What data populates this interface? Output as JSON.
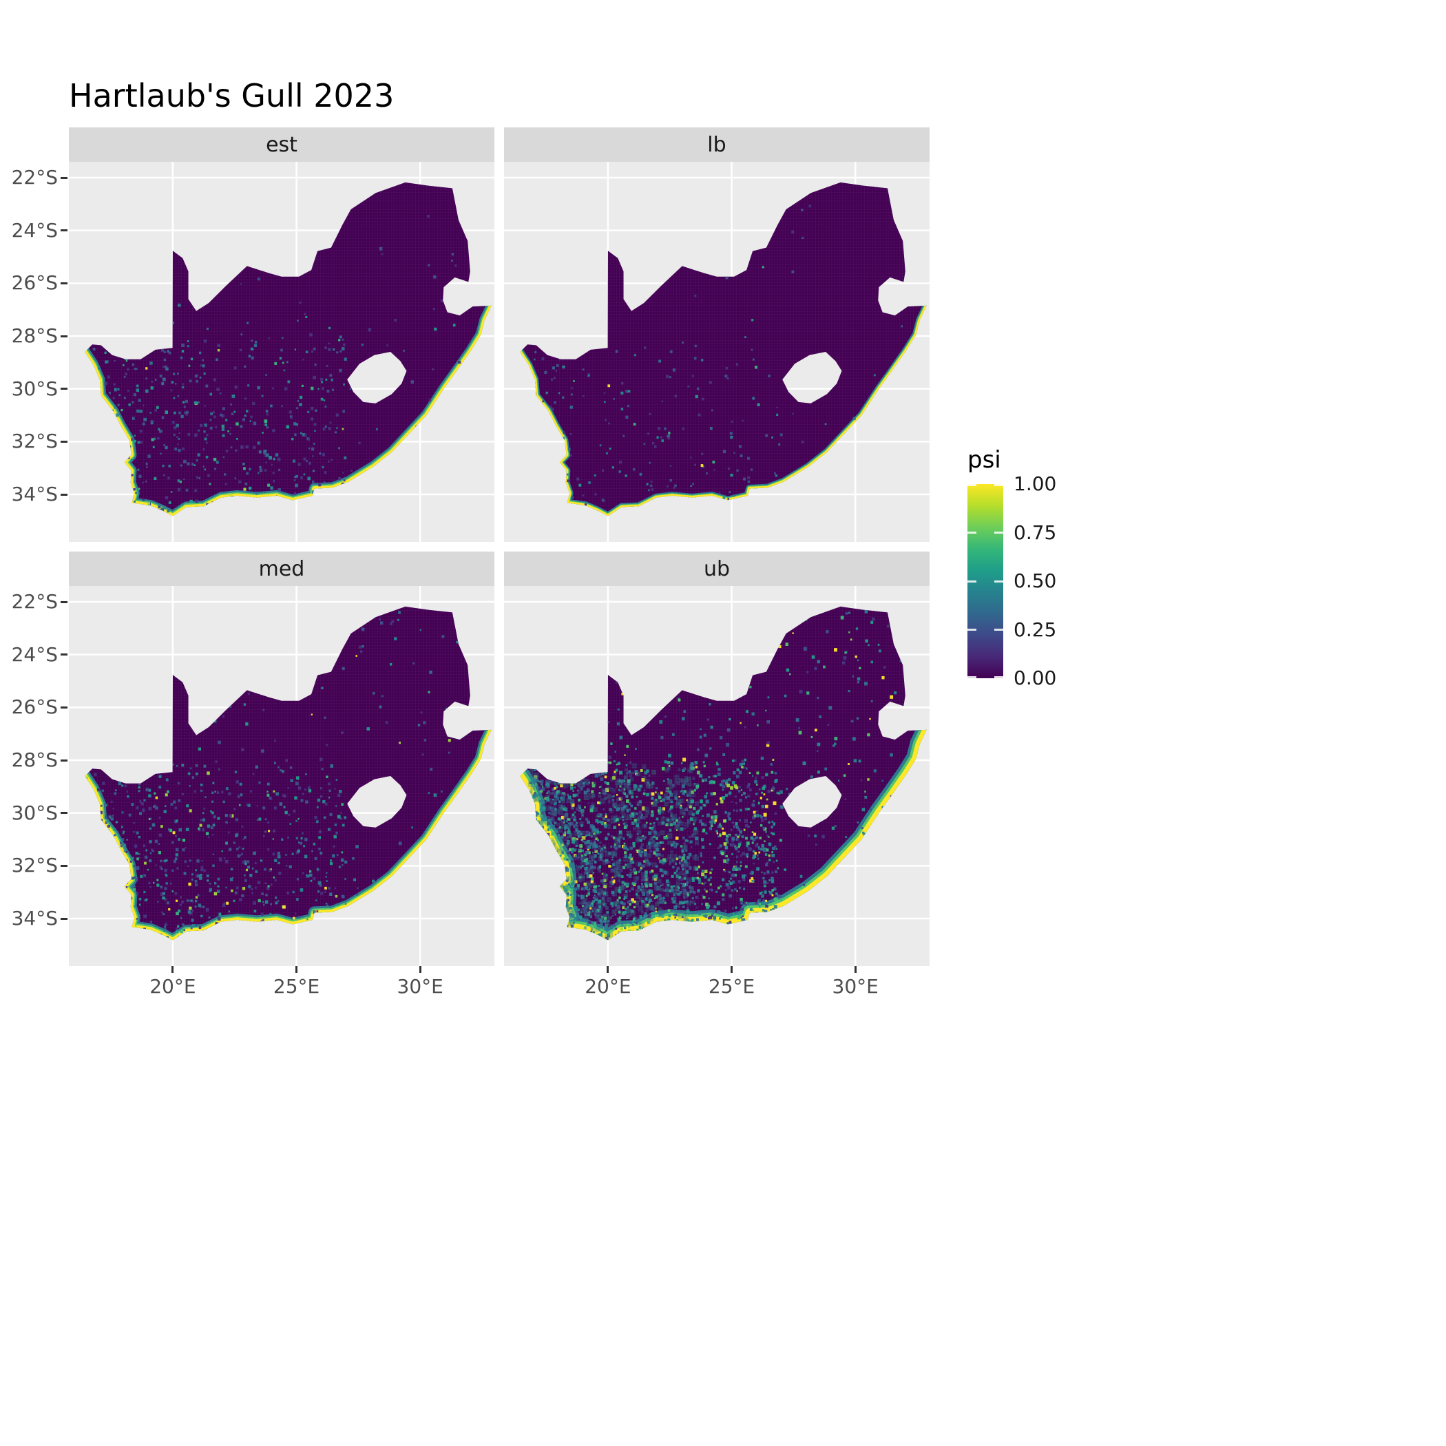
{
  "title": "Hartlaub's Gull 2023",
  "legend": {
    "title": "psi",
    "ticks": [
      {
        "label": "1.00",
        "value": 1.0
      },
      {
        "label": "0.75",
        "value": 0.75
      },
      {
        "label": "0.50",
        "value": 0.5
      },
      {
        "label": "0.25",
        "value": 0.25
      },
      {
        "label": "0.00",
        "value": 0.0
      }
    ],
    "viridis": [
      "#440154",
      "#482878",
      "#3e4989",
      "#31688e",
      "#26828e",
      "#1f9e89",
      "#35b779",
      "#6ece58",
      "#b5de2b",
      "#fde725"
    ]
  },
  "axes": {
    "y_ticks": [
      {
        "label": "22°S",
        "lat": 22
      },
      {
        "label": "24°S",
        "lat": 24
      },
      {
        "label": "26°S",
        "lat": 26
      },
      {
        "label": "28°S",
        "lat": 28
      },
      {
        "label": "30°S",
        "lat": 30
      },
      {
        "label": "32°S",
        "lat": 32
      },
      {
        "label": "34°S",
        "lat": 34
      }
    ],
    "x_ticks": [
      {
        "label": "20°E",
        "lon": 20
      },
      {
        "label": "25°E",
        "lon": 25
      },
      {
        "label": "30°E",
        "lon": 30
      }
    ]
  },
  "chart_data": {
    "type": "heatmap",
    "title": "Hartlaub's Gull 2023",
    "variable": "psi",
    "region": "South Africa",
    "scale": {
      "min": 0.0,
      "max": 1.0,
      "palette": "viridis",
      "legend_position": "right"
    },
    "extent": {
      "lon": [
        15.8,
        33.0
      ],
      "lat": [
        21.4,
        35.8
      ]
    },
    "panel_background": "#EBEBEB",
    "land_fill": "#440154",
    "gridline_color": "#FFFFFF",
    "facets": [
      {
        "label": "est",
        "summary": "Estimated occupancy: near 0 across the interior; high psi (green-yellow) fringe along the west and south coasts; sparse low-value speckling in the southwest.",
        "style": {
          "seed": 11,
          "speckles": 700,
          "sw_fraction": 0.75,
          "size": [
            0.06,
            0.13
          ],
          "colors": [
            [
              "#46327e",
              3
            ],
            [
              "#3b528b",
              2.5
            ],
            [
              "#2c728e",
              2
            ],
            [
              "#24868e",
              1.2
            ],
            [
              "#1f9e89",
              0.7
            ],
            [
              "#35b779",
              0.4
            ],
            [
              "#a0da39",
              0.15
            ],
            [
              "#fde725",
              0.15
            ]
          ],
          "coast_widths": [
            0.42,
            0.28,
            0.18
          ]
        }
      },
      {
        "label": "lb",
        "summary": "Lower bound: almost entirely 0; narrow high-psi strip only on the west and far south coasts.",
        "style": {
          "seed": 22,
          "speckles": 260,
          "sw_fraction": 0.8,
          "size": [
            0.06,
            0.12
          ],
          "colors": [
            [
              "#46327e",
              3
            ],
            [
              "#3b528b",
              2
            ],
            [
              "#2c728e",
              1.2
            ],
            [
              "#24868e",
              0.7
            ],
            [
              "#1f9e89",
              0.4
            ],
            [
              "#35b779",
              0.25
            ],
            [
              "#fde725",
              0.1
            ]
          ],
          "coast_widths": [
            0.3,
            0.2,
            0.14
          ]
        }
      },
      {
        "label": "med",
        "summary": "Median: near 0 inland with moderate speckling in the west and southwest; strong coastal fringe of high psi.",
        "style": {
          "seed": 33,
          "speckles": 950,
          "sw_fraction": 0.75,
          "size": [
            0.06,
            0.13
          ],
          "colors": [
            [
              "#46327e",
              3
            ],
            [
              "#3b528b",
              2.5
            ],
            [
              "#2c728e",
              2.2
            ],
            [
              "#24868e",
              1.5
            ],
            [
              "#1f9e89",
              0.9
            ],
            [
              "#35b779",
              0.6
            ],
            [
              "#a0da39",
              0.25
            ],
            [
              "#fde725",
              0.25
            ]
          ],
          "coast_widths": [
            0.48,
            0.32,
            0.2
          ]
        }
      },
      {
        "label": "ub",
        "summary": "Upper bound: wide high-psi coastal band and extensive teal/green speckling across the western interior; scattered bright cells elsewhere.",
        "style": {
          "seed": 44,
          "speckles": 2400,
          "sw_fraction": 0.78,
          "size": [
            0.06,
            0.14
          ],
          "colors": [
            [
              "#46327e",
              2
            ],
            [
              "#3b528b",
              2
            ],
            [
              "#2c728e",
              2.5
            ],
            [
              "#24868e",
              2.5
            ],
            [
              "#1f9e89",
              1.8
            ],
            [
              "#35b779",
              1.2
            ],
            [
              "#52c569",
              0.8
            ],
            [
              "#a0da39",
              0.6
            ],
            [
              "#fde725",
              0.7
            ]
          ],
          "coast_widths": [
            0.8,
            0.55,
            0.34
          ],
          "haze": {
            "seed": 55,
            "count": 900,
            "size": [
              0.1,
              0.22
            ],
            "opacity": 0.32,
            "colors": [
              [
                "#2c728e",
                2
              ],
              [
                "#24868e",
                2
              ],
              [
                "#26828e",
                1.5
              ],
              [
                "#1f9e89",
                1
              ]
            ]
          }
        }
      }
    ],
    "map": {
      "coast_colors": [
        "#2a788e",
        "#54c568",
        "#fde725"
      ],
      "coast_points": 37,
      "outer": [
        [
          16.45,
          28.6
        ],
        [
          16.8,
          29.1
        ],
        [
          17.05,
          29.65
        ],
        [
          17.1,
          30.25
        ],
        [
          17.6,
          30.85
        ],
        [
          17.9,
          31.4
        ],
        [
          18.25,
          31.95
        ],
        [
          18.33,
          32.5
        ],
        [
          18.05,
          32.78
        ],
        [
          18.33,
          33.1
        ],
        [
          18.3,
          33.55
        ],
        [
          18.45,
          33.95
        ],
        [
          18.35,
          34.32
        ],
        [
          19.1,
          34.42
        ],
        [
          19.6,
          34.62
        ],
        [
          20.0,
          34.82
        ],
        [
          20.55,
          34.48
        ],
        [
          21.25,
          34.45
        ],
        [
          21.95,
          34.12
        ],
        [
          22.6,
          34.05
        ],
        [
          23.4,
          34.12
        ],
        [
          24.2,
          34.05
        ],
        [
          24.85,
          34.22
        ],
        [
          25.65,
          34.05
        ],
        [
          25.72,
          33.78
        ],
        [
          26.45,
          33.75
        ],
        [
          27.1,
          33.52
        ],
        [
          28.1,
          32.95
        ],
        [
          28.85,
          32.4
        ],
        [
          29.55,
          31.7
        ],
        [
          30.25,
          31.0
        ],
        [
          30.95,
          30.0
        ],
        [
          31.45,
          29.35
        ],
        [
          32.05,
          28.55
        ],
        [
          32.45,
          27.95
        ],
        [
          32.6,
          27.4
        ],
        [
          32.88,
          26.85
        ],
        [
          32.12,
          26.88
        ],
        [
          31.6,
          27.22
        ],
        [
          31.1,
          27.1
        ],
        [
          30.92,
          26.65
        ],
        [
          30.95,
          26.15
        ],
        [
          31.4,
          25.78
        ],
        [
          31.95,
          25.95
        ],
        [
          32.02,
          25.55
        ],
        [
          31.92,
          24.4
        ],
        [
          31.55,
          23.6
        ],
        [
          31.3,
          22.4
        ],
        [
          30.3,
          22.3
        ],
        [
          29.4,
          22.18
        ],
        [
          28.2,
          22.58
        ],
        [
          27.2,
          23.2
        ],
        [
          26.85,
          23.8
        ],
        [
          26.4,
          24.65
        ],
        [
          25.85,
          24.78
        ],
        [
          25.6,
          25.5
        ],
        [
          25.1,
          25.75
        ],
        [
          24.4,
          25.75
        ],
        [
          23.9,
          25.62
        ],
        [
          23.0,
          25.35
        ],
        [
          22.15,
          26.1
        ],
        [
          21.45,
          26.75
        ],
        [
          20.95,
          27.05
        ],
        [
          20.63,
          26.6
        ],
        [
          20.63,
          25.55
        ],
        [
          20.4,
          25.05
        ],
        [
          20.0,
          24.77
        ],
        [
          19.99,
          28.45
        ],
        [
          19.3,
          28.52
        ],
        [
          18.7,
          28.88
        ],
        [
          18.1,
          28.88
        ],
        [
          17.55,
          28.72
        ],
        [
          17.1,
          28.35
        ],
        [
          16.75,
          28.32
        ]
      ],
      "lesotho": [
        [
          27.05,
          29.65
        ],
        [
          27.55,
          29.05
        ],
        [
          28.15,
          28.72
        ],
        [
          28.8,
          28.6
        ],
        [
          29.2,
          28.95
        ],
        [
          29.45,
          29.32
        ],
        [
          29.25,
          29.8
        ],
        [
          28.85,
          30.2
        ],
        [
          28.2,
          30.55
        ],
        [
          27.7,
          30.5
        ],
        [
          27.3,
          30.12
        ]
      ]
    }
  }
}
